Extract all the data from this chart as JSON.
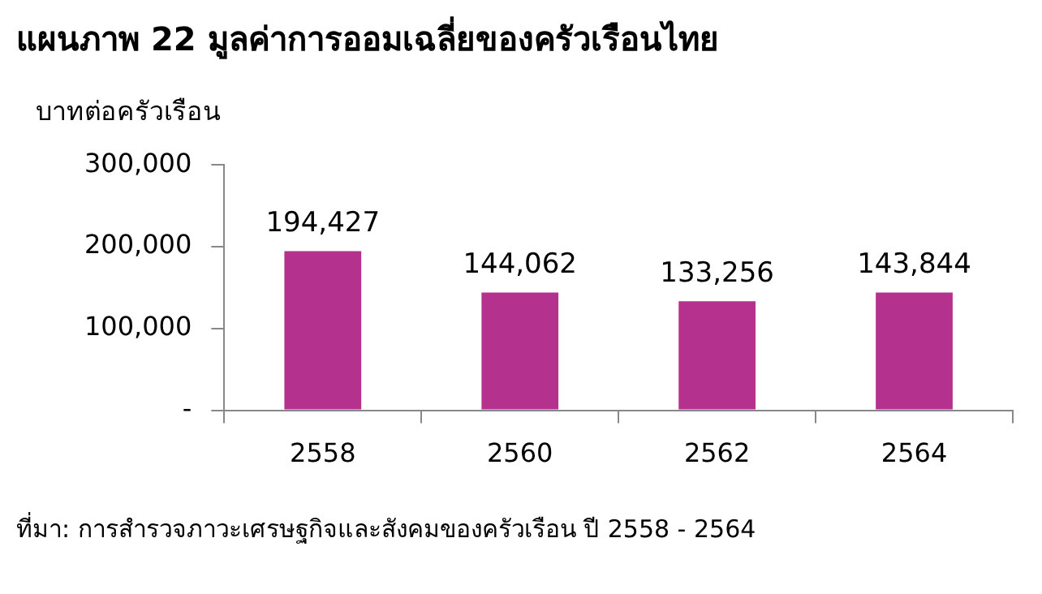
{
  "chart_data": {
    "type": "bar",
    "title": "แผนภาพ  22  มูลค่าการออมเฉลี่ยของครัวเรือนไทย",
    "ylabel": "บาทต่อครัวเรือน",
    "categories": [
      "2558",
      "2560",
      "2562",
      "2564"
    ],
    "values": [
      194427,
      144062,
      133256,
      143844
    ],
    "value_labels": [
      "194,427",
      "144,062",
      "133,256",
      "143,844"
    ],
    "color": "#b5318e",
    "ylim": [
      0,
      300000
    ],
    "yticks": [
      {
        "value": 0,
        "label": "-"
      },
      {
        "value": 100000,
        "label": "100,000"
      },
      {
        "value": 200000,
        "label": "200,000"
      },
      {
        "value": 300000,
        "label": "300,000"
      }
    ],
    "grid": false,
    "legend": false,
    "annotations": [
      "ที่มา: การสำรวจภาวะเศรษฐกิจและสังคมของครัวเรือน ปี 2558 - 2564"
    ]
  }
}
